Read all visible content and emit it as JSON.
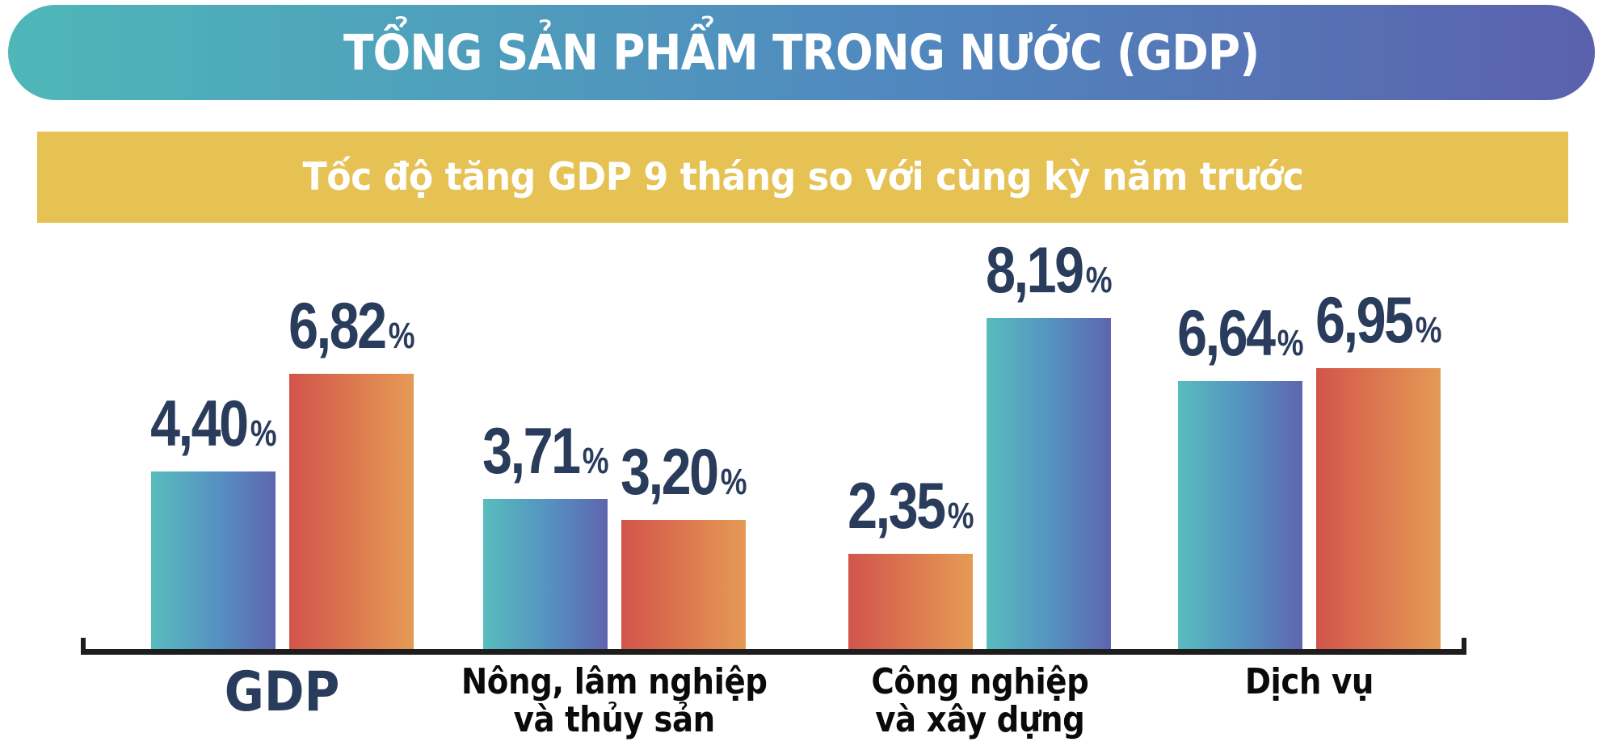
{
  "header": {
    "title": "TỔNG SẢN PHẨM TRONG NƯỚC (GDP)"
  },
  "subheader": {
    "text": "Tốc độ tăng GDP 9 tháng so với cùng kỳ năm trước"
  },
  "colors": {
    "title_gradient_start": "#4eb7b8",
    "title_gradient_mid": "#5089bf",
    "title_gradient_end": "#5b61ad",
    "banner_yellow": "#e6c255",
    "banner_text": "#ffffff",
    "value_label_navy": "#2a3c5c",
    "category_label_black": "#0a0a0a",
    "axis_black": "#1d1d1d",
    "bar_teal_start": "#58bcbd",
    "bar_teal_end": "#5f65ae",
    "bar_orange_start": "#d2544b",
    "bar_orange_end": "#e59a55"
  },
  "chart_data": {
    "type": "bar",
    "title": "TỔNG SẢN PHẨM TRONG NƯỚC (GDP)",
    "subtitle": "Tốc độ tăng GDP 9 tháng so với cùng kỳ năm trước",
    "unit": "%",
    "value_suffix": "%",
    "decimal_style": "comma",
    "ylim": [
      0,
      9
    ],
    "grid": false,
    "y_axis_shown": false,
    "x_axis_baseline_shown": true,
    "value_labels_shown": true,
    "legend": "none",
    "categories": [
      "GDP",
      "Nông, lâm nghiệp và thủy sản",
      "Công nghiệp và xây dựng",
      "Dịch vụ"
    ],
    "groups": [
      {
        "label": "GDP",
        "label_lines": [
          "GDP"
        ],
        "emphasis": true,
        "bars": [
          {
            "display": "4,40",
            "value": 4.4,
            "palette": "teal"
          },
          {
            "display": "6,82",
            "value": 6.82,
            "palette": "orange"
          }
        ]
      },
      {
        "label": "Nông, lâm nghiệp và thủy sản",
        "label_lines": [
          "Nông, lâm nghiệp",
          "và thủy sản"
        ],
        "emphasis": false,
        "bars": [
          {
            "display": "3,71",
            "value": 3.71,
            "palette": "teal"
          },
          {
            "display": "3,20",
            "value": 3.2,
            "palette": "orange"
          }
        ]
      },
      {
        "label": "Công nghiệp và xây dựng",
        "label_lines": [
          "Công nghiệp",
          "và xây dựng"
        ],
        "emphasis": false,
        "bars": [
          {
            "display": "2,35",
            "value": 2.35,
            "palette": "orange"
          },
          {
            "display": "8,19",
            "value": 8.19,
            "palette": "teal"
          }
        ]
      },
      {
        "label": "Dịch vụ",
        "label_lines": [
          "Dịch vụ"
        ],
        "emphasis": false,
        "bars": [
          {
            "display": "6,64",
            "value": 6.64,
            "palette": "teal"
          },
          {
            "display": "6,95",
            "value": 6.95,
            "palette": "orange"
          }
        ]
      }
    ]
  }
}
